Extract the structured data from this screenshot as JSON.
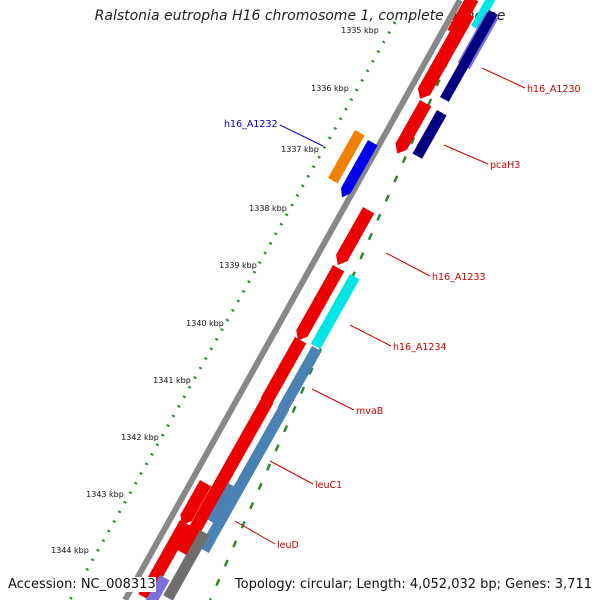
{
  "title": "Ralstonia eutropha H16 chromosome 1, complete genome",
  "accession": "Accession: NC_008313",
  "topology": "Topology: circular; Length: 4,052,032 bp; Genes: 3,711",
  "ticks": [
    "1335 kbp",
    "1336 kbp",
    "1337 kbp",
    "1338 kbp",
    "1339 kbp",
    "1340 kbp",
    "1341 kbp",
    "1342 kbp",
    "1343 kbp",
    "1344 kbp"
  ],
  "labels": [
    {
      "text": "h16_A1230",
      "color": "#cc0000"
    },
    {
      "text": "h16_A1232",
      "color": "#0000cc"
    },
    {
      "text": "pcaH3",
      "color": "#cc0000"
    },
    {
      "text": "h16_A1233",
      "color": "#cc0000"
    },
    {
      "text": "h16_A1234",
      "color": "#cc0000"
    },
    {
      "text": "mvaB",
      "color": "#cc0000"
    },
    {
      "text": "leuC1",
      "color": "#cc0000"
    },
    {
      "text": "leuD",
      "color": "#cc0000"
    }
  ],
  "colors": {
    "backbone": "#888888",
    "cds": "#ee0000",
    "gc_positive": "#2a8a2a",
    "accent_blue": "#0000ee",
    "accent_navy": "#000080",
    "accent_cyan": "#00e5e5",
    "accent_steel": "#4a82b4",
    "accent_orange": "#f08000",
    "accent_lavender": "#7a70d8",
    "accent_grey": "#6e6e6e"
  }
}
